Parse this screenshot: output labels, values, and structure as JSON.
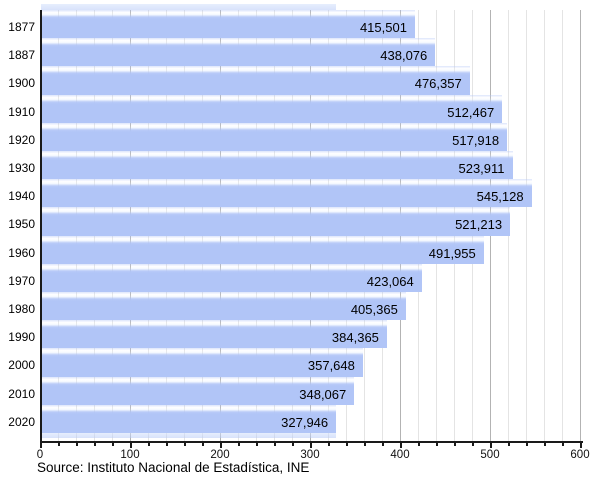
{
  "chart_data": {
    "type": "bar",
    "orientation": "horizontal",
    "title": "",
    "categories": [
      "1877",
      "1887",
      "1900",
      "1910",
      "1920",
      "1930",
      "1940",
      "1950",
      "1960",
      "1970",
      "1980",
      "1990",
      "2000",
      "2010",
      "2020"
    ],
    "values": [
      415501,
      438076,
      476357,
      512467,
      517918,
      523911,
      545128,
      521213,
      491955,
      423064,
      405365,
      384365,
      357648,
      348067,
      327946
    ],
    "value_labels": [
      "415,501",
      "438,076",
      "476,357",
      "512,467",
      "517,918",
      "523,911",
      "545,128",
      "521,213",
      "491,955",
      "423,064",
      "405,365",
      "384,365",
      "357,648",
      "348,067",
      "327,946"
    ],
    "xlabel": "",
    "ylabel": "",
    "xlim": [
      0,
      600
    ],
    "x_ticks": [
      0,
      100,
      200,
      300,
      400,
      500,
      600
    ],
    "x_tick_labels": [
      "0",
      "100",
      "200",
      "300",
      "400",
      "500",
      "600"
    ],
    "x_minor_step": 20,
    "grid": true,
    "legend": "none",
    "bar_color": "#b1c5f7",
    "gridline_minor_color": "#e4e4e4",
    "gridline_major_color": "#b3b3b3",
    "axis_color": "#1a1a1a",
    "source": "Source: Instituto Nacional de Estadística, INE"
  }
}
